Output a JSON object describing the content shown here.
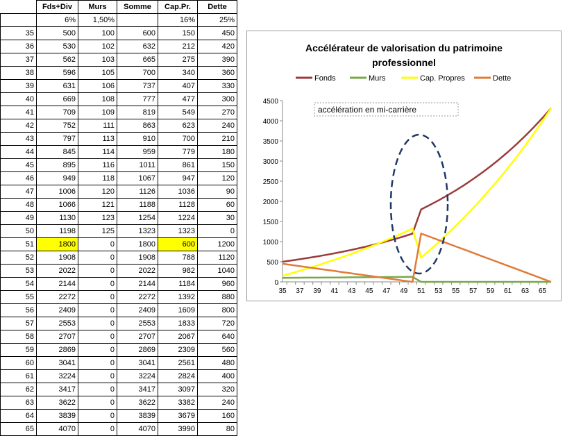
{
  "table": {
    "headers": [
      "",
      "Fds+Div",
      "Murs",
      "Somme",
      "Cap.Pr.",
      "Dette"
    ],
    "rates": [
      "",
      "6%",
      "1,50%",
      "",
      "16%",
      "25%"
    ],
    "rows": [
      [
        "35",
        "500",
        "100",
        "600",
        "150",
        "450"
      ],
      [
        "36",
        "530",
        "102",
        "632",
        "212",
        "420"
      ],
      [
        "37",
        "562",
        "103",
        "665",
        "275",
        "390"
      ],
      [
        "38",
        "596",
        "105",
        "700",
        "340",
        "360"
      ],
      [
        "39",
        "631",
        "106",
        "737",
        "407",
        "330"
      ],
      [
        "40",
        "669",
        "108",
        "777",
        "477",
        "300"
      ],
      [
        "41",
        "709",
        "109",
        "819",
        "549",
        "270"
      ],
      [
        "42",
        "752",
        "111",
        "863",
        "623",
        "240"
      ],
      [
        "43",
        "797",
        "113",
        "910",
        "700",
        "210"
      ],
      [
        "44",
        "845",
        "114",
        "959",
        "779",
        "180"
      ],
      [
        "45",
        "895",
        "116",
        "1011",
        "861",
        "150"
      ],
      [
        "46",
        "949",
        "118",
        "1067",
        "947",
        "120"
      ],
      [
        "47",
        "1006",
        "120",
        "1126",
        "1036",
        "90"
      ],
      [
        "48",
        "1066",
        "121",
        "1188",
        "1128",
        "60"
      ],
      [
        "49",
        "1130",
        "123",
        "1254",
        "1224",
        "30"
      ],
      [
        "50",
        "1198",
        "125",
        "1323",
        "1323",
        "0"
      ],
      [
        "51",
        "1800",
        "0",
        "1800",
        "600",
        "1200"
      ],
      [
        "52",
        "1908",
        "0",
        "1908",
        "788",
        "1120"
      ],
      [
        "53",
        "2022",
        "0",
        "2022",
        "982",
        "1040"
      ],
      [
        "54",
        "2144",
        "0",
        "2144",
        "1184",
        "960"
      ],
      [
        "55",
        "2272",
        "0",
        "2272",
        "1392",
        "880"
      ],
      [
        "56",
        "2409",
        "0",
        "2409",
        "1609",
        "800"
      ],
      [
        "57",
        "2553",
        "0",
        "2553",
        "1833",
        "720"
      ],
      [
        "58",
        "2707",
        "0",
        "2707",
        "2067",
        "640"
      ],
      [
        "59",
        "2869",
        "0",
        "2869",
        "2309",
        "560"
      ],
      [
        "60",
        "3041",
        "0",
        "3041",
        "2561",
        "480"
      ],
      [
        "61",
        "3224",
        "0",
        "3224",
        "2824",
        "400"
      ],
      [
        "62",
        "3417",
        "0",
        "3417",
        "3097",
        "320"
      ],
      [
        "63",
        "3622",
        "0",
        "3622",
        "3382",
        "240"
      ],
      [
        "64",
        "3839",
        "0",
        "3839",
        "3679",
        "160"
      ],
      [
        "65",
        "4070",
        "0",
        "4070",
        "3990",
        "80"
      ]
    ],
    "highlight_row": "51",
    "highlight_color": "#ffff00"
  },
  "chart_data": {
    "type": "line",
    "title": "Accélérateur de valorisation du patrimoine professionnel",
    "annotation": "accélération en mi-carrière",
    "x": [
      35,
      36,
      37,
      38,
      39,
      40,
      41,
      42,
      43,
      44,
      45,
      46,
      47,
      48,
      49,
      50,
      51,
      52,
      53,
      54,
      55,
      56,
      57,
      58,
      59,
      60,
      61,
      62,
      63,
      64,
      65,
      66
    ],
    "xlim": [
      35,
      66
    ],
    "ylim": [
      0,
      4500
    ],
    "xticks": [
      "35",
      "37",
      "39",
      "41",
      "43",
      "45",
      "47",
      "49",
      "51",
      "53",
      "55",
      "57",
      "59",
      "61",
      "63",
      "65"
    ],
    "yticks": [
      "0",
      "500",
      "1000",
      "1500",
      "2000",
      "2500",
      "3000",
      "3500",
      "4000",
      "4500"
    ],
    "legend_position": "top",
    "grid": false,
    "series": [
      {
        "name": "Fonds",
        "color": "#9b3b3b",
        "values": [
          500,
          530,
          562,
          596,
          631,
          669,
          709,
          752,
          797,
          845,
          895,
          949,
          1006,
          1066,
          1130,
          1198,
          1800,
          1908,
          2022,
          2144,
          2272,
          2409,
          2553,
          2707,
          2869,
          3041,
          3224,
          3417,
          3622,
          3839,
          4070,
          4314
        ]
      },
      {
        "name": "Murs",
        "color": "#77a94a",
        "values": [
          100,
          102,
          103,
          105,
          106,
          108,
          109,
          111,
          113,
          114,
          116,
          118,
          120,
          121,
          123,
          125,
          0,
          0,
          0,
          0,
          0,
          0,
          0,
          0,
          0,
          0,
          0,
          0,
          0,
          0,
          0,
          0
        ]
      },
      {
        "name": "Cap. Propres",
        "color": "#ffff00",
        "values": [
          150,
          212,
          275,
          340,
          407,
          477,
          549,
          623,
          700,
          779,
          861,
          947,
          1036,
          1128,
          1224,
          1323,
          600,
          788,
          982,
          1184,
          1392,
          1609,
          1833,
          2067,
          2309,
          2561,
          2824,
          3097,
          3382,
          3679,
          3990,
          4314
        ]
      },
      {
        "name": "Dette",
        "color": "#e07b39",
        "values": [
          450,
          420,
          390,
          360,
          330,
          300,
          270,
          240,
          210,
          180,
          150,
          120,
          90,
          60,
          30,
          0,
          1200,
          1120,
          1040,
          960,
          880,
          800,
          720,
          640,
          560,
          480,
          400,
          320,
          240,
          160,
          80,
          0
        ]
      }
    ]
  }
}
